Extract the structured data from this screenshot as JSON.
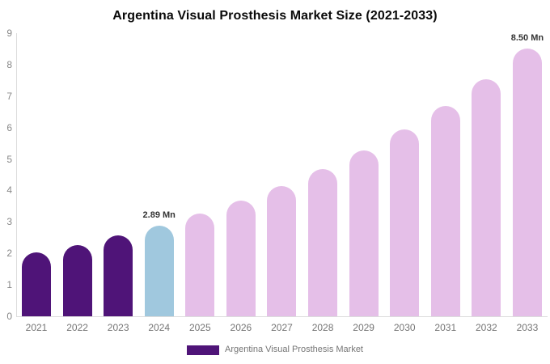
{
  "title": "Argentina Visual Prosthesis Market Size (2021-2033)",
  "legend": {
    "label": "Argentina Visual Prosthesis Market"
  },
  "colors": {
    "historical": "#4F1478",
    "base_year": "#A0C8DE",
    "forecast": "#E5BFE8",
    "axis_line": "#DCDCDC",
    "tick_text": "#888888",
    "xlabel_text": "#757575",
    "value_label_text": "#333333",
    "legend_text": "#757575",
    "title_text": "#0A0A0A"
  },
  "chart_data": {
    "type": "bar",
    "title": "Argentina Visual Prosthesis Market Size (2021-2033)",
    "xlabel": "",
    "ylabel": "",
    "unit": "Mn",
    "ylim": [
      0,
      9
    ],
    "yticks": [
      0,
      1,
      2,
      3,
      4,
      5,
      6,
      7,
      8,
      9
    ],
    "grid": false,
    "legend_position": "bottom",
    "categories": [
      "2021",
      "2022",
      "2023",
      "2024",
      "2025",
      "2026",
      "2027",
      "2028",
      "2029",
      "2030",
      "2031",
      "2032",
      "2033"
    ],
    "values": [
      2.02,
      2.27,
      2.56,
      2.89,
      3.26,
      3.67,
      4.14,
      4.67,
      5.26,
      5.93,
      6.68,
      7.53,
      8.5
    ],
    "bar_roles": [
      "historical",
      "historical",
      "historical",
      "base_year",
      "forecast",
      "forecast",
      "forecast",
      "forecast",
      "forecast",
      "forecast",
      "forecast",
      "forecast",
      "forecast"
    ],
    "annotations": [
      {
        "category": "2024",
        "text": "2.89 Mn"
      },
      {
        "category": "2033",
        "text": "8.50 Mn"
      }
    ]
  }
}
